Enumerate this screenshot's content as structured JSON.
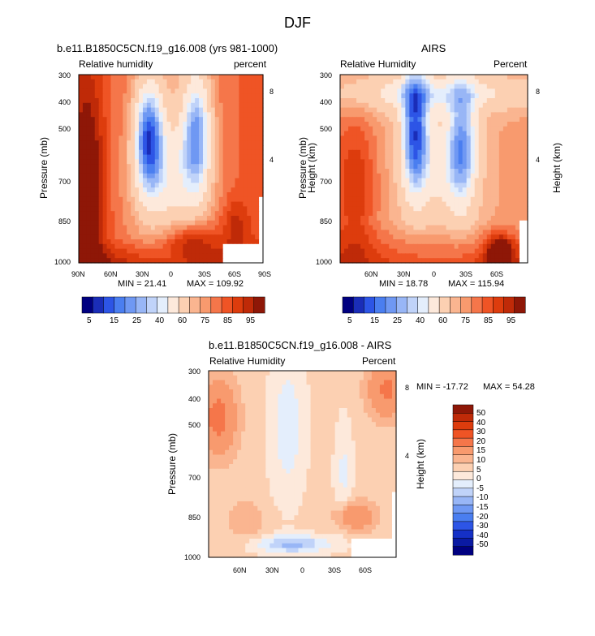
{
  "page_title": "DJF",
  "colors": {
    "blue": [
      "#000080",
      "#1a2db8",
      "#2d55e6",
      "#4a7ef0",
      "#6f98f3",
      "#98b6f6",
      "#c0d3f9",
      "#e4eefc"
    ],
    "red": [
      "#fde9db",
      "#fcd0b2",
      "#fab590",
      "#f89a6e",
      "#f5764a",
      "#ef5425",
      "#dd3c0d",
      "#bf2a08",
      "#8e1707"
    ],
    "diff_blue": [
      "#000080",
      "#0a1aa3",
      "#1530c6",
      "#2d55e6",
      "#4a7ef0",
      "#6f98f3",
      "#98b6f6",
      "#c0d3f9",
      "#e4eefc"
    ],
    "diff_red": [
      "#fde9db",
      "#fcd0b2",
      "#fab590",
      "#f89a6e",
      "#f5764a",
      "#ef5425",
      "#dd3c0d",
      "#bf2a08",
      "#8e1707"
    ]
  },
  "chart_data": [
    {
      "type": "heatmap",
      "title": "b.e11.B1850C5CN.f19_g16.008 (yrs 981-1000)",
      "left_label": "Relative humidity",
      "right_label": "percent",
      "ylabel": "Pressure (mb)",
      "y2label": "Height (km)",
      "x_ticks": [
        "90N",
        "60N",
        "30N",
        "0",
        "30S",
        "60S",
        "90S"
      ],
      "y_ticks": [
        "300",
        "400",
        "500",
        "700",
        "850",
        "1000"
      ],
      "y2_ticks": [
        "8",
        "4"
      ],
      "min_label": "MIN = 21.41",
      "max_label": "MAX = 109.92",
      "min": 21.41,
      "max": 109.92,
      "levels": [
        5,
        10,
        15,
        20,
        25,
        30,
        35,
        40,
        50,
        60,
        65,
        70,
        75,
        80,
        85,
        90,
        95
      ]
    },
    {
      "type": "heatmap",
      "title": "AIRS",
      "left_label": "Relative Humidity",
      "right_label": "Percent",
      "ylabel": "Pressure (mb)",
      "y2label": "Height (km)",
      "x_ticks": [
        "60N",
        "30N",
        "0",
        "30S",
        "60S"
      ],
      "y_ticks": [
        "300",
        "400",
        "500",
        "700",
        "850",
        "1000"
      ],
      "y2_ticks": [
        "8",
        "4"
      ],
      "min_label": "MIN = 18.78",
      "max_label": "MAX = 115.94",
      "min": 18.78,
      "max": 115.94
    },
    {
      "type": "heatmap",
      "title": "b.e11.B1850C5CN.f19_g16.008 - AIRS",
      "left_label": "Relative Humidity",
      "right_label": "Percent",
      "ylabel": "Pressure (mb)",
      "y2label": "Height (km)",
      "x_ticks": [
        "60N",
        "30N",
        "0",
        "30S",
        "60S"
      ],
      "y_ticks": [
        "300",
        "400",
        "500",
        "700",
        "850",
        "1000"
      ],
      "y2_ticks": [
        "8",
        "4"
      ],
      "min_label": "MIN = -17.72",
      "max_label": "MAX =  54.28",
      "min": -17.72,
      "max": 54.28,
      "levels": [
        -50,
        -40,
        -30,
        -20,
        -15,
        -10,
        -5,
        0,
        5,
        10,
        15,
        20,
        30,
        40,
        50
      ]
    }
  ],
  "colorbar_top": {
    "labels": [
      "5",
      "15",
      "25",
      "40",
      "60",
      "75",
      "85",
      "95"
    ]
  },
  "colorbar_diff": {
    "labels": [
      "50",
      "40",
      "30",
      "20",
      "15",
      "10",
      "5",
      "0",
      "-5",
      "-10",
      "-15",
      "-20",
      "-30",
      "-40",
      "-50"
    ]
  }
}
